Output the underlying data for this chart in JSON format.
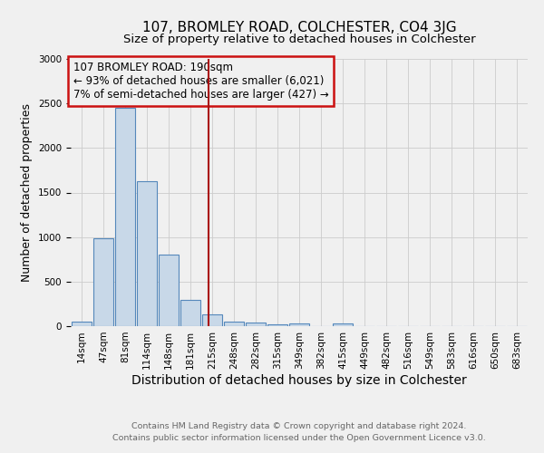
{
  "title": "107, BROMLEY ROAD, COLCHESTER, CO4 3JG",
  "subtitle": "Size of property relative to detached houses in Colchester",
  "xlabel": "Distribution of detached houses by size in Colchester",
  "ylabel": "Number of detached properties",
  "footer_line1": "Contains HM Land Registry data © Crown copyright and database right 2024.",
  "footer_line2": "Contains public sector information licensed under the Open Government Licence v3.0.",
  "annotation_line1": "107 BROMLEY ROAD: 190sqm",
  "annotation_line2": "← 93% of detached houses are smaller (6,021)",
  "annotation_line3": "7% of semi-detached houses are larger (427) →",
  "bar_labels": [
    "14sqm",
    "47sqm",
    "81sqm",
    "114sqm",
    "148sqm",
    "181sqm",
    "215sqm",
    "248sqm",
    "282sqm",
    "315sqm",
    "349sqm",
    "382sqm",
    "415sqm",
    "449sqm",
    "482sqm",
    "516sqm",
    "549sqm",
    "583sqm",
    "616sqm",
    "650sqm",
    "683sqm"
  ],
  "bar_values": [
    50,
    990,
    2450,
    1630,
    800,
    300,
    130,
    55,
    45,
    25,
    30,
    0,
    35,
    0,
    0,
    0,
    0,
    0,
    0,
    0,
    0
  ],
  "bar_color": "#c8d8e8",
  "bar_edge_color": "#5588bb",
  "vline_x": 5.83,
  "vline_color": "#aa1111",
  "ylim": [
    0,
    3000
  ],
  "background_color": "#f0f0f0",
  "grid_color": "#cccccc",
  "title_fontsize": 11,
  "subtitle_fontsize": 9.5,
  "xlabel_fontsize": 10,
  "ylabel_fontsize": 9,
  "tick_fontsize": 7.5,
  "footer_fontsize": 6.8,
  "annotation_fontsize": 8.5,
  "annotation_box_color": "#cc1111"
}
